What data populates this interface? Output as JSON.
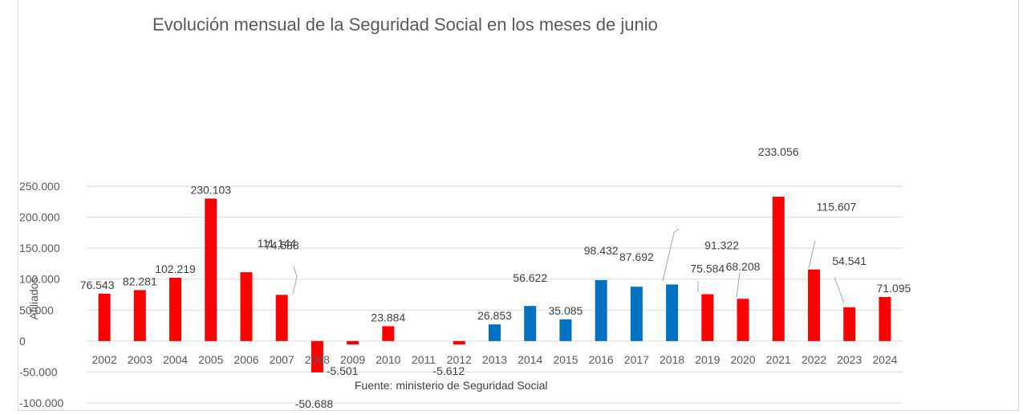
{
  "chart_data": {
    "type": "bar",
    "title": "Evolución mensual de la Seguridad Social en los meses de junio",
    "ylabel": "Afiliados",
    "xlabel": "",
    "source": "Fuente: ministerio de Seguridad Social",
    "ylim": [
      -100000,
      250000
    ],
    "grid": true,
    "legend": "none",
    "y_ticks": [
      "250.000",
      "200.000",
      "150.000",
      "100.000",
      "50.000",
      "0",
      "-50.000",
      "-100.000"
    ],
    "y_tick_values": [
      250000,
      200000,
      150000,
      100000,
      50000,
      0,
      -50000,
      -100000
    ],
    "colors": {
      "red": "#ff0000",
      "blue": "#0070c0"
    },
    "categories": [
      "2002",
      "2003",
      "2004",
      "2005",
      "2006",
      "2007",
      "2008",
      "2009",
      "2010",
      "2011",
      "2012",
      "2013",
      "2014",
      "2015",
      "2016",
      "2017",
      "2018",
      "2019",
      "2020",
      "2021",
      "2022",
      "2023",
      "2024"
    ],
    "values": [
      76543,
      82281,
      102219,
      230103,
      111144,
      74588,
      -50688,
      -5501,
      23884,
      0,
      -5612,
      26853,
      56622,
      35085,
      98432,
      87692,
      91322,
      75584,
      68208,
      233056,
      115607,
      54541,
      71095
    ],
    "value_labels": [
      "76.543",
      "82.281",
      "102.219",
      "230.103",
      "111.144",
      "74.588",
      "-50.688",
      "-5.501",
      "23.884",
      "",
      "-5.612",
      "26.853",
      "56.622",
      "35.085",
      "98.432",
      "87.692",
      "91.322",
      "75.584",
      "68.208",
      "233.056",
      "115.607",
      "54.541",
      "71.095"
    ],
    "bar_colors": [
      "#ff0000",
      "#ff0000",
      "#ff0000",
      "#ff0000",
      "#ff0000",
      "#ff0000",
      "#ff0000",
      "#ff0000",
      "#ff0000",
      "#ff0000",
      "#ff0000",
      "#0070c0",
      "#0070c0",
      "#0070c0",
      "#0070c0",
      "#0070c0",
      "#0070c0",
      "#ff0000",
      "#ff0000",
      "#ff0000",
      "#ff0000",
      "#ff0000",
      "#ff0000"
    ]
  }
}
